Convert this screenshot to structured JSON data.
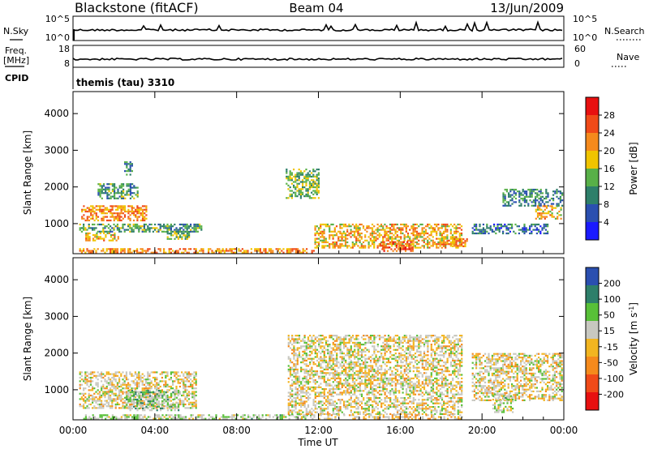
{
  "header": {
    "station": "Blackstone (fitACF)",
    "beam": "Beam 04",
    "date": "13/Jun/2009"
  },
  "top_strip": {
    "nsky_label": "N.Sky",
    "nsky_tick_top": "10^5",
    "nsky_tick_bottom": "10^0",
    "nsearch_label": "N.Search",
    "freq_label_1": "Freq.",
    "freq_label_2": "[MHz]",
    "freq_tick_top": "18",
    "freq_tick_bottom": "8",
    "nave_label": "Nave",
    "nave_tick_top": "60",
    "nave_tick_bottom": "0",
    "cpid_label": "CPID",
    "cpid_value": "themis (tau) 3310"
  },
  "legend_styles": {
    "nsearch_line": "dotted",
    "nave_line": "dotted"
  },
  "colors": {
    "power_scale": [
      "#1a1aff",
      "#2a4fb0",
      "#2e7f6a",
      "#58b048",
      "#f0c400",
      "#f58a1c",
      "#f04a18",
      "#e81010"
    ],
    "velocity_scale": [
      "#e81010",
      "#f04a18",
      "#f58a1c",
      "#f2b520",
      "#c8c8c0",
      "#58c038",
      "#2e7f6a",
      "#2a4fb0"
    ],
    "ground_scatter": "#c8c8c0"
  },
  "chart_data": [
    {
      "id": "power",
      "type": "heatmap",
      "ylabel": "Slant Range [km]",
      "xlabel": "",
      "xlim": [
        "00:00",
        "00:00"
      ],
      "ylim": [
        180,
        4600
      ],
      "x_ticks": [
        "00:00",
        "04:00",
        "08:00",
        "12:00",
        "16:00",
        "20:00",
        "00:00"
      ],
      "y_ticks": [
        1000,
        2000,
        3000,
        4000
      ],
      "grid": false,
      "colorbar": {
        "label": "Power [dB]",
        "ticks": [
          "4",
          "8",
          "12",
          "16",
          "20",
          "24",
          "28"
        ],
        "range": [
          0,
          32
        ]
      },
      "echo_regions": [
        {
          "t_start_h": 0.3,
          "t_end_h": 11.8,
          "range_km": [
            220,
            330
          ],
          "value_db": 22
        },
        {
          "t_start_h": 0.6,
          "t_end_h": 2.2,
          "range_km": [
            560,
            760
          ],
          "value_db": 20
        },
        {
          "t_start_h": 0.3,
          "t_end_h": 6.3,
          "range_km": [
            780,
            1000
          ],
          "value_db": 12
        },
        {
          "t_start_h": 0.4,
          "t_end_h": 3.6,
          "range_km": [
            1100,
            1500
          ],
          "value_db": 22
        },
        {
          "t_start_h": 4.5,
          "t_end_h": 5.7,
          "range_km": [
            600,
            800
          ],
          "value_db": 14
        },
        {
          "t_start_h": 1.2,
          "t_end_h": 3.2,
          "range_km": [
            1700,
            2100
          ],
          "value_db": 12
        },
        {
          "t_start_h": 2.5,
          "t_end_h": 2.9,
          "range_km": [
            2350,
            2700
          ],
          "value_db": 10
        },
        {
          "t_start_h": 10.4,
          "t_end_h": 12.0,
          "range_km": [
            1700,
            2500
          ],
          "value_db": 14
        },
        {
          "t_start_h": 11.8,
          "t_end_h": 19.0,
          "range_km": [
            330,
            1000
          ],
          "value_db": 20
        },
        {
          "t_start_h": 15.0,
          "t_end_h": 16.6,
          "range_km": [
            250,
            520
          ],
          "value_db": 26
        },
        {
          "t_start_h": 18.0,
          "t_end_h": 19.3,
          "range_km": [
            380,
            600
          ],
          "value_db": 22
        },
        {
          "t_start_h": 19.5,
          "t_end_h": 23.2,
          "range_km": [
            730,
            1000
          ],
          "value_db": 8
        },
        {
          "t_start_h": 21.0,
          "t_end_h": 23.9,
          "range_km": [
            1500,
            1950
          ],
          "value_db": 10
        },
        {
          "t_start_h": 22.6,
          "t_end_h": 23.9,
          "range_km": [
            1150,
            1500
          ],
          "value_db": 20
        }
      ]
    },
    {
      "id": "velocity",
      "type": "heatmap",
      "ylabel": "Slant Range [km]",
      "xlabel": "Time UT",
      "xlim": [
        "00:00",
        "00:00"
      ],
      "ylim": [
        180,
        4600
      ],
      "x_ticks": [
        "00:00",
        "04:00",
        "08:00",
        "12:00",
        "16:00",
        "20:00",
        "00:00"
      ],
      "y_ticks": [
        1000,
        2000,
        3000,
        4000
      ],
      "grid": false,
      "colorbar": {
        "label": "Velocity [m s^-1]",
        "ticks": [
          "200",
          "100",
          "50",
          "15",
          "-15",
          "-50",
          "-100",
          "-200"
        ],
        "range": [
          -250,
          250
        ]
      },
      "echo_regions": [
        {
          "t_start_h": 0.3,
          "t_end_h": 6.0,
          "range_km": [
            500,
            1500
          ],
          "value_ms": 0
        },
        {
          "t_start_h": 2.5,
          "t_end_h": 5.2,
          "range_km": [
            420,
            1000
          ],
          "value_ms": -80
        },
        {
          "t_start_h": 0.5,
          "t_end_h": 11.8,
          "range_km": [
            220,
            330
          ],
          "value_ms": -40
        },
        {
          "t_start_h": 10.5,
          "t_end_h": 19.0,
          "range_km": [
            350,
            2500
          ],
          "value_ms": 0
        },
        {
          "t_start_h": 12.0,
          "t_end_h": 19.0,
          "range_km": [
            220,
            330
          ],
          "value_ms": 30
        },
        {
          "t_start_h": 19.5,
          "t_end_h": 23.9,
          "range_km": [
            700,
            2000
          ],
          "value_ms": 0
        },
        {
          "t_start_h": 20.5,
          "t_end_h": 21.5,
          "range_km": [
            400,
            900
          ],
          "value_ms": -40
        }
      ]
    }
  ]
}
